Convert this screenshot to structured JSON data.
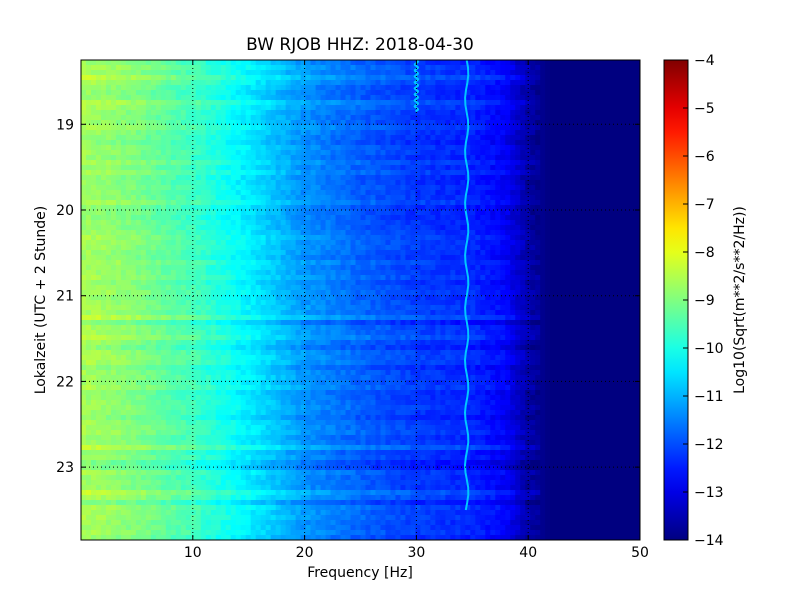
{
  "chart_data": {
    "type": "heatmap",
    "title": "BW RJOB HHZ: 2018-04-30",
    "xlabel": "Frequency [Hz]",
    "ylabel": "Lokalzeit (UTC + 2 Stunde)",
    "xlim": [
      0,
      50
    ],
    "ylim": [
      18.25,
      23.85
    ],
    "x_ticks": [
      10,
      20,
      30,
      40,
      50
    ],
    "y_ticks": [
      19,
      20,
      21,
      22,
      23
    ],
    "grid": "dotted",
    "colormap": "jet",
    "colorbar": {
      "label": "Log10(Sqrt(m**2/s**2/Hz))",
      "range": [
        -14,
        -4
      ],
      "ticks": [
        -4,
        -5,
        -6,
        -7,
        -8,
        -9,
        -10,
        -11,
        -12,
        -13,
        -14
      ]
    },
    "spectral_profile": {
      "frequency_hz": [
        0,
        5,
        10,
        15,
        20,
        25,
        30,
        35,
        38,
        40,
        42,
        50
      ],
      "level": [
        -8.6,
        -9.0,
        -9.6,
        -10.4,
        -11.3,
        -11.8,
        -12.2,
        -12.4,
        -12.8,
        -13.6,
        -14,
        -14
      ]
    },
    "narrowband_lines": [
      {
        "frequency_hz": 30,
        "time_range": [
          18.25,
          18.85
        ]
      },
      {
        "frequency_hz": 34.5,
        "time_range": [
          18.25,
          23.5
        ]
      }
    ]
  }
}
